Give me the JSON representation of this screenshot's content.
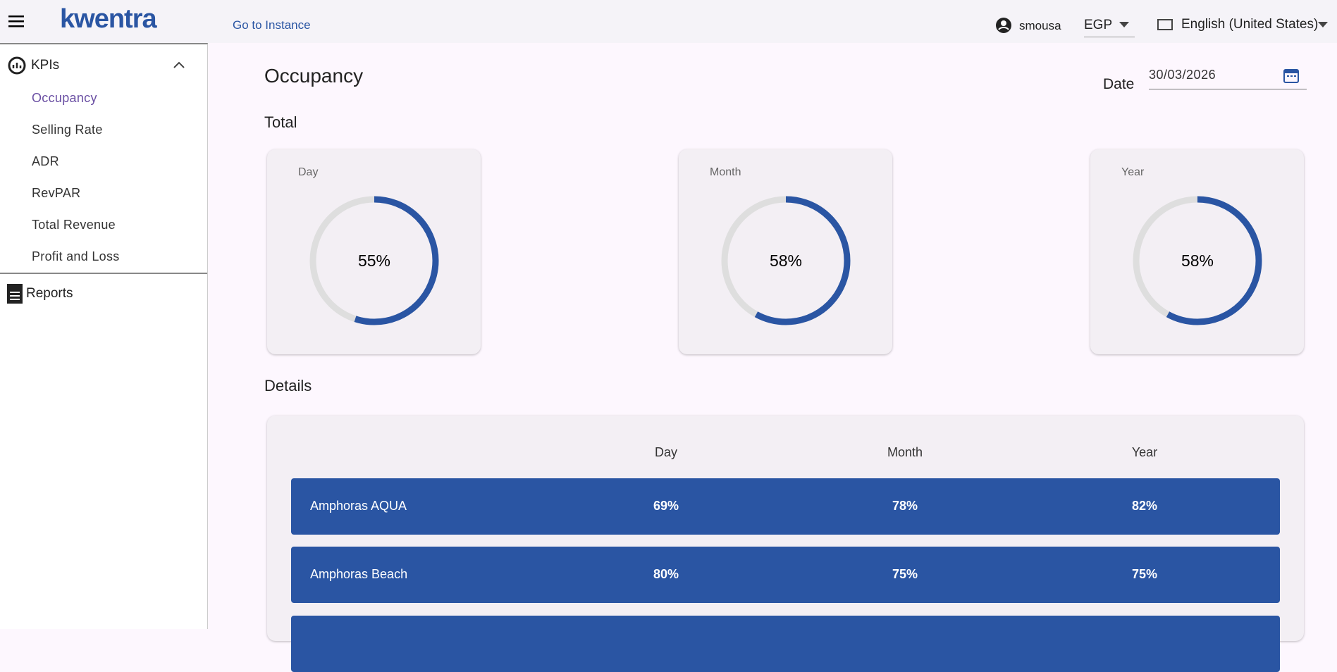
{
  "header": {
    "logo": "kwentra",
    "link": "Go to Instance",
    "user": "smousa",
    "currency": "EGP",
    "language": "English (United States)"
  },
  "sidebar": {
    "group": "KPIs",
    "items": [
      "Occupancy",
      "Selling Rate",
      "ADR",
      "RevPAR",
      "Total Revenue",
      "Profit and Loss"
    ],
    "reports": "Reports"
  },
  "page": {
    "title": "Occupancy",
    "date_label": "Date",
    "date": "30/03/2026",
    "total_title": "Total",
    "details_title": "Details"
  },
  "gauges": [
    {
      "label": "Day",
      "value": 55,
      "value_label": "55%"
    },
    {
      "label": "Month",
      "value": 58,
      "value_label": "58%"
    },
    {
      "label": "Year",
      "value": 58,
      "value_label": "58%"
    }
  ],
  "table": {
    "columns": [
      "Day",
      "Month",
      "Year"
    ],
    "rows": [
      [
        "Amphoras AQUA",
        "69%",
        "78%",
        "82%"
      ],
      [
        "Amphoras Beach",
        "80%",
        "75%",
        "75%"
      ]
    ]
  }
}
